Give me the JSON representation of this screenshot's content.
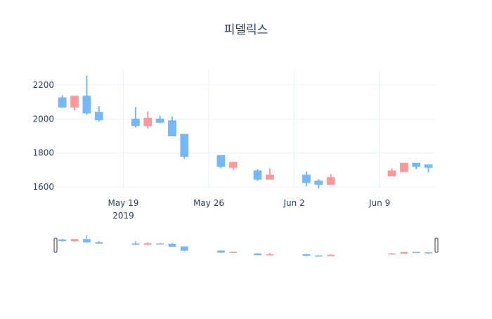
{
  "chart_data": {
    "type": "candlestick",
    "title": "피델릭스",
    "xlabel": "",
    "ylabel": "",
    "x_tick_labels": [
      "May 19",
      "May 26",
      "Jun 2",
      "Jun 9"
    ],
    "x_tick_sublabel": "2019",
    "x_tick_dates": [
      "2019-05-19",
      "2019-05-26",
      "2019-06-02",
      "2019-06-09"
    ],
    "y_ticks": [
      1600,
      1800,
      2000,
      2200
    ],
    "ylim": [
      1560,
      2290
    ],
    "xlim": [
      "2019-05-13.5",
      "2019-06-13.6"
    ],
    "grid": true,
    "rangeslider": true,
    "colors": {
      "increasing": "#ff9999",
      "decreasing": "#75b8f8",
      "text": "#2a3f5f",
      "grid": "#ebf0f8"
    },
    "series": [
      {
        "date": "2019-05-14",
        "open": 2125,
        "high": 2140,
        "low": 2065,
        "close": 2070
      },
      {
        "date": "2019-05-15",
        "open": 2070,
        "high": 2135,
        "low": 2050,
        "close": 2135
      },
      {
        "date": "2019-05-16",
        "open": 2135,
        "high": 2255,
        "low": 2025,
        "close": 2035
      },
      {
        "date": "2019-05-17",
        "open": 2040,
        "high": 2075,
        "low": 1985,
        "close": 1995
      },
      {
        "date": "2019-05-20",
        "open": 2000,
        "high": 2070,
        "low": 1950,
        "close": 1960
      },
      {
        "date": "2019-05-21",
        "open": 1960,
        "high": 2045,
        "low": 1945,
        "close": 2005
      },
      {
        "date": "2019-05-22",
        "open": 2000,
        "high": 2020,
        "low": 1975,
        "close": 1980
      },
      {
        "date": "2019-05-23",
        "open": 1990,
        "high": 2015,
        "low": 1900,
        "close": 1900
      },
      {
        "date": "2019-05-24",
        "open": 1910,
        "high": 1910,
        "low": 1765,
        "close": 1780
      },
      {
        "date": "2019-05-27",
        "open": 1785,
        "high": 1785,
        "low": 1710,
        "close": 1720
      },
      {
        "date": "2019-05-28",
        "open": 1715,
        "high": 1750,
        "low": 1700,
        "close": 1745
      },
      {
        "date": "2019-05-30",
        "open": 1695,
        "high": 1705,
        "low": 1635,
        "close": 1645
      },
      {
        "date": "2019-05-31",
        "open": 1645,
        "high": 1710,
        "low": 1645,
        "close": 1670
      },
      {
        "date": "2019-06-03",
        "open": 1670,
        "high": 1690,
        "low": 1605,
        "close": 1625
      },
      {
        "date": "2019-06-04",
        "open": 1635,
        "high": 1645,
        "low": 1590,
        "close": 1615
      },
      {
        "date": "2019-06-05",
        "open": 1615,
        "high": 1675,
        "low": 1615,
        "close": 1655
      },
      {
        "date": "2019-06-10",
        "open": 1665,
        "high": 1710,
        "low": 1665,
        "close": 1695
      },
      {
        "date": "2019-06-11",
        "open": 1690,
        "high": 1740,
        "low": 1690,
        "close": 1740
      },
      {
        "date": "2019-06-12",
        "open": 1740,
        "high": 1740,
        "low": 1705,
        "close": 1720
      },
      {
        "date": "2019-06-13",
        "open": 1730,
        "high": 1730,
        "low": 1685,
        "close": 1715
      }
    ]
  }
}
